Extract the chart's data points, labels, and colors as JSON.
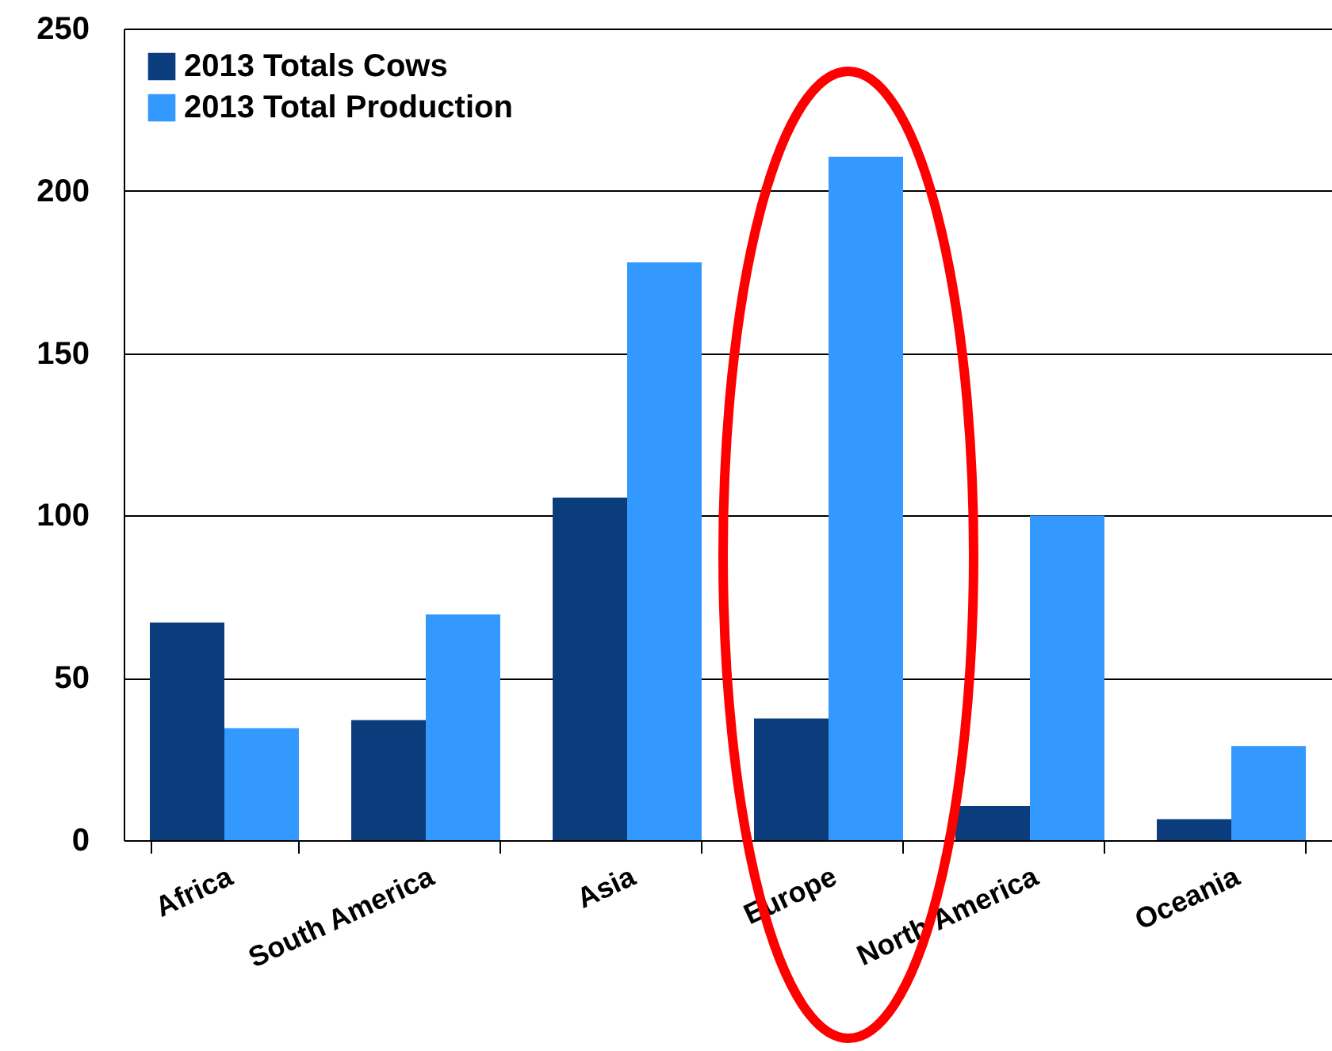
{
  "chart_data": {
    "type": "bar",
    "categories": [
      "Africa",
      "South America",
      "Asia",
      "Europe",
      "North America",
      "Oceania"
    ],
    "series": [
      {
        "name": "2013 Totals Cows",
        "color": "#0b3c7c",
        "values": [
          67,
          37,
          105.5,
          37.5,
          10.5,
          6.5
        ]
      },
      {
        "name": "2013 Total Production",
        "color": "#3399ff",
        "values": [
          34.5,
          69.5,
          178,
          210.5,
          100,
          29
        ]
      }
    ],
    "ylim": [
      0,
      250
    ],
    "yticks": [
      0,
      50,
      100,
      150,
      200,
      250
    ],
    "grid": "y",
    "legend": "top left"
  }
}
